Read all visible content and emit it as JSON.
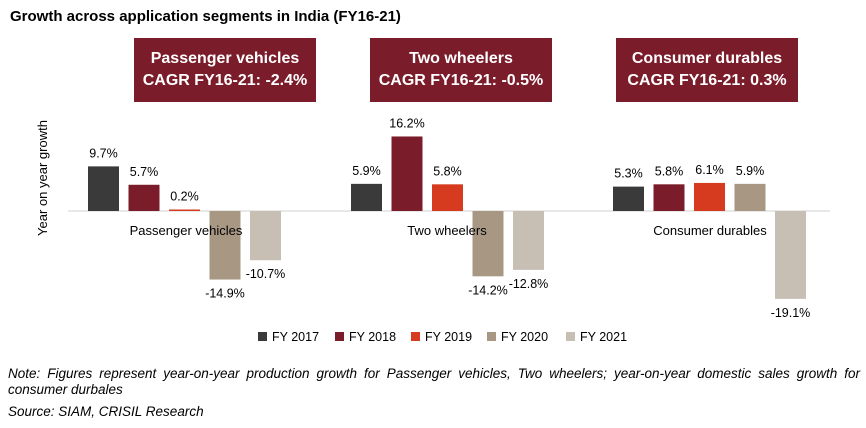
{
  "title": "Growth across application segments in India (FY16-21)",
  "segment_boxes": [
    {
      "line1": "Passenger vehicles",
      "line2": "CAGR FY16-21: -2.4%"
    },
    {
      "line1": "Two wheelers",
      "line2": "CAGR FY16-21: -0.5%"
    },
    {
      "line1": "Consumer durables",
      "line2": "CAGR FY16-21: 0.3%"
    }
  ],
  "note": "Note: Figures represent year-on-year production growth for Passenger vehicles, Two wheelers; year-on-year domestic sales growth for consumer durbales",
  "source": "Source: SIAM, CRISIL Research",
  "chart_data": {
    "type": "bar",
    "title": "Growth across application segments in India (FY16-21)",
    "ylabel": "Year on year growth",
    "xlabel": "",
    "categories": [
      "Passenger vehicles",
      "Two wheelers",
      "Consumer durables"
    ],
    "series": [
      {
        "name": "FY 2017",
        "color": "#3a3a3a",
        "values": [
          9.7,
          5.9,
          5.3
        ],
        "labels": [
          "9.7%",
          "5.9%",
          "5.3%"
        ]
      },
      {
        "name": "FY 2018",
        "color": "#7b1c2b",
        "values": [
          5.7,
          16.2,
          5.8
        ],
        "labels": [
          "5.7%",
          "16.2%",
          "5.8%"
        ]
      },
      {
        "name": "FY 2019",
        "color": "#d63b1f",
        "values": [
          0.2,
          5.8,
          6.1
        ],
        "labels": [
          "0.2%",
          "5.8%",
          "6.1%"
        ]
      },
      {
        "name": "FY 2020",
        "color": "#a89783",
        "values": [
          -14.9,
          -14.2,
          5.9
        ],
        "labels": [
          "-14.9%",
          "-14.2%",
          "5.9%"
        ]
      },
      {
        "name": "FY 2021",
        "color": "#c8bfb4",
        "values": [
          -10.7,
          -12.8,
          -19.1
        ],
        "labels": [
          "-10.7%",
          "-12.8%",
          "-19.1%"
        ]
      }
    ],
    "legend_position": "bottom",
    "grid": false
  }
}
